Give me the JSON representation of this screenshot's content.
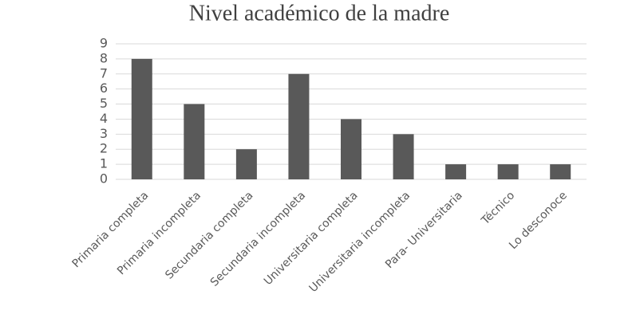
{
  "chart_data": {
    "type": "bar",
    "title": "Nivel académico de la madre",
    "categories": [
      "Primaria completa",
      "Primaria incompleta",
      "Secundaria completa",
      "Secundaria incompleta",
      "Universitaria completa",
      "Universitaria incompleta",
      "Para- Universitaria",
      "Técnico",
      "Lo desconoce"
    ],
    "values": [
      8,
      5,
      2,
      7,
      4,
      3,
      1,
      1,
      1
    ],
    "color": "#595959",
    "ylim": [
      0,
      9
    ],
    "yticks": [
      0,
      1,
      2,
      3,
      4,
      5,
      6,
      7,
      8,
      9
    ],
    "grid": true
  }
}
